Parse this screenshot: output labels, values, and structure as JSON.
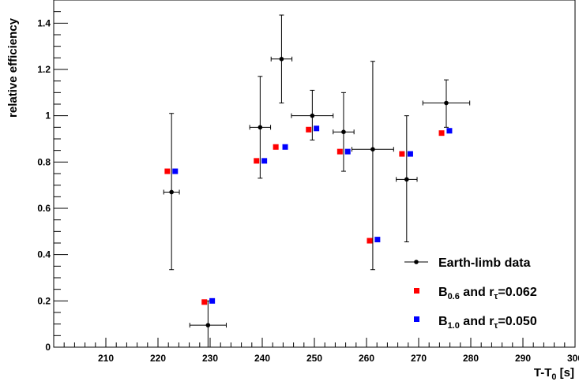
{
  "chart_data": {
    "type": "scatter",
    "title": "",
    "xlabel": {
      "main": "T-T",
      "sub": "0",
      "tail": " [s]"
    },
    "ylabel": "relative efficiency",
    "xlim": [
      200,
      300
    ],
    "ylim": [
      0,
      1.5
    ],
    "x_ticks": [
      210,
      220,
      230,
      240,
      250,
      260,
      270,
      280,
      290,
      300
    ],
    "y_ticks": [
      0,
      0.2,
      0.4,
      0.6,
      0.8,
      1,
      1.2,
      1.4
    ],
    "y_tick_labels": [
      "0",
      "0.2",
      "0.4",
      "0.6",
      "0.8",
      "1",
      "1.2",
      "1.4"
    ],
    "grid": false,
    "legend_placement": "bottom-right",
    "series": [
      {
        "name": "Earth-limb data",
        "color": "#000000",
        "marker": "circle",
        "points": [
          {
            "x": 222.6,
            "y": 0.67,
            "xerr": 1.5,
            "yerr_low": 0.335,
            "yerr_high": 0.34
          },
          {
            "x": 229.6,
            "y": 0.095,
            "xerr": 3.5,
            "yerr_low": 0.095,
            "yerr_high": 0.105
          },
          {
            "x": 239.6,
            "y": 0.95,
            "xerr": 2.0,
            "yerr_low": 0.22,
            "yerr_high": 0.22
          },
          {
            "x": 243.7,
            "y": 1.245,
            "xerr": 2.0,
            "yerr_low": 0.19,
            "yerr_high": 0.19
          },
          {
            "x": 249.6,
            "y": 1.0,
            "xerr": 4.0,
            "yerr_low": 0.105,
            "yerr_high": 0.11
          },
          {
            "x": 255.6,
            "y": 0.93,
            "xerr": 2.0,
            "yerr_low": 0.17,
            "yerr_high": 0.17
          },
          {
            "x": 261.2,
            "y": 0.855,
            "xerr": 4.0,
            "yerr_low": 0.52,
            "yerr_high": 0.38
          },
          {
            "x": 267.7,
            "y": 0.725,
            "xerr": 2.0,
            "yerr_low": 0.27,
            "yerr_high": 0.275
          },
          {
            "x": 275.3,
            "y": 1.055,
            "xerr": 4.5,
            "yerr_low": 0.105,
            "yerr_high": 0.1
          }
        ]
      },
      {
        "name": {
          "main": "B",
          "sub": "0.6",
          "mid": " and r",
          "sub2": "τ",
          "tail": "=0.062"
        },
        "color": "#ff0000",
        "marker": "square",
        "points": [
          {
            "x": 221.8,
            "y": 0.76
          },
          {
            "x": 228.9,
            "y": 0.195
          },
          {
            "x": 238.9,
            "y": 0.805
          },
          {
            "x": 242.6,
            "y": 0.865
          },
          {
            "x": 248.9,
            "y": 0.94
          },
          {
            "x": 254.9,
            "y": 0.845
          },
          {
            "x": 260.6,
            "y": 0.46
          },
          {
            "x": 266.8,
            "y": 0.835
          },
          {
            "x": 274.4,
            "y": 0.925
          }
        ]
      },
      {
        "name": {
          "main": "B",
          "sub": "1.0",
          "mid": " and r",
          "sub2": "τ",
          "tail": "=0.050"
        },
        "color": "#0000ff",
        "marker": "square",
        "points": [
          {
            "x": 223.3,
            "y": 0.76
          },
          {
            "x": 230.4,
            "y": 0.2
          },
          {
            "x": 240.4,
            "y": 0.805
          },
          {
            "x": 244.4,
            "y": 0.865
          },
          {
            "x": 250.4,
            "y": 0.945
          },
          {
            "x": 256.4,
            "y": 0.845
          },
          {
            "x": 262.1,
            "y": 0.465
          },
          {
            "x": 268.4,
            "y": 0.835
          },
          {
            "x": 275.9,
            "y": 0.935
          }
        ]
      }
    ]
  }
}
